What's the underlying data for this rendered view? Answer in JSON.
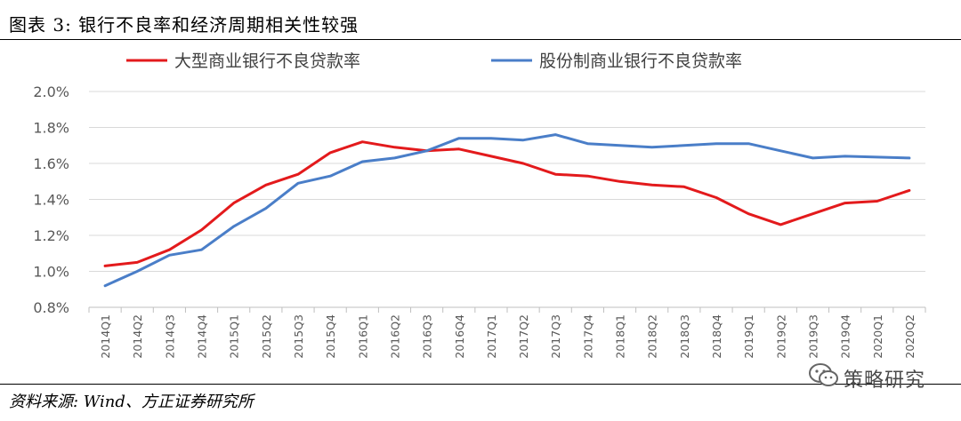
{
  "header": {
    "title": "图表 3:  银行不良率和经济周期相关性较强"
  },
  "footer": {
    "source": "资料来源:  Wind、方正证券研究所"
  },
  "watermark": {
    "text": "策略研究",
    "icon": "wechat-icon"
  },
  "chart_data": {
    "type": "line",
    "title": "",
    "xlabel": "",
    "ylabel": "",
    "ylim": [
      0.8,
      2.0
    ],
    "yticks": [
      "0.8%",
      "1.0%",
      "1.2%",
      "1.4%",
      "1.6%",
      "1.8%",
      "2.0%"
    ],
    "grid": true,
    "legend_position": "top",
    "categories": [
      "2014Q1",
      "2014Q2",
      "2014Q3",
      "2014Q4",
      "2015Q1",
      "2015Q2",
      "2015Q3",
      "2015Q4",
      "2016Q1",
      "2016Q2",
      "2016Q3",
      "2016Q4",
      "2017Q1",
      "2017Q2",
      "2017Q3",
      "2017Q4",
      "2018Q1",
      "2018Q2",
      "2018Q3",
      "2018Q4",
      "2019Q1",
      "2019Q2",
      "2019Q3",
      "2019Q4",
      "2020Q1",
      "2020Q2"
    ],
    "series": [
      {
        "name": "大型商业银行不良贷款率",
        "color": "#e31a1c",
        "values": [
          1.03,
          1.05,
          1.12,
          1.23,
          1.38,
          1.48,
          1.54,
          1.66,
          1.72,
          1.69,
          1.67,
          1.68,
          1.64,
          1.6,
          1.54,
          1.53,
          1.5,
          1.48,
          1.47,
          1.41,
          1.32,
          1.26,
          1.32,
          1.38,
          1.39,
          1.45
        ]
      },
      {
        "name": "股份制商业银行不良贷款率",
        "color": "#4a7ec8",
        "values": [
          0.92,
          1.0,
          1.09,
          1.12,
          1.25,
          1.35,
          1.49,
          1.53,
          1.61,
          1.63,
          1.67,
          1.74,
          1.74,
          1.73,
          1.76,
          1.71,
          1.7,
          1.69,
          1.7,
          1.71,
          1.71,
          1.67,
          1.63,
          1.64,
          1.635,
          1.63
        ]
      }
    ]
  }
}
